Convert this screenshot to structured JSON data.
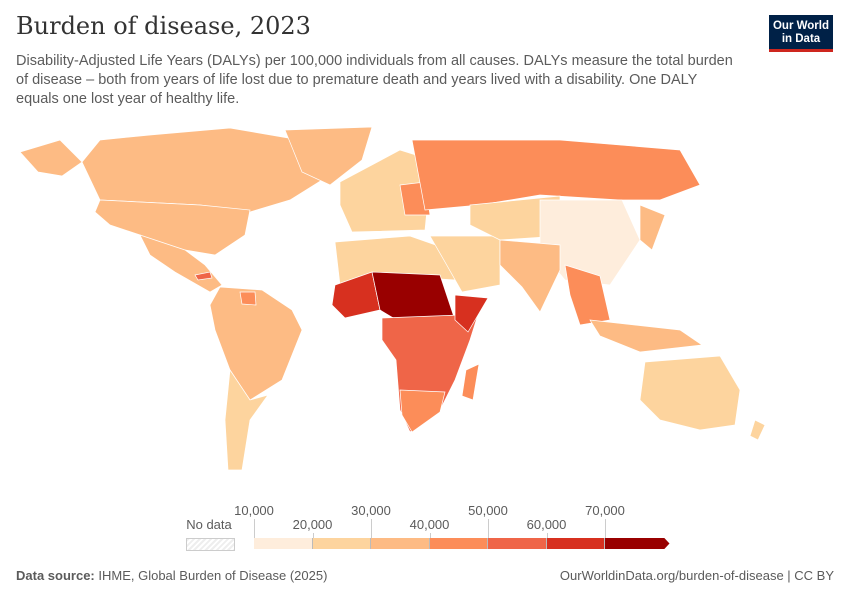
{
  "header": {
    "title": "Burden of disease, 2023",
    "subtitle": "Disability-Adjusted Life Years (DALYs) per 100,000 individuals from all causes. DALYs measure the total burden of disease – both from years of life lost due to premature death and years lived with a disability. One DALY equals one lost year of healthy life.",
    "logo_line1": "Our World",
    "logo_line2": "in Data"
  },
  "legend": {
    "no_data_label": "No data",
    "ticks": [
      "10,000",
      "20,000",
      "30,000",
      "40,000",
      "50,000",
      "60,000",
      "70,000"
    ],
    "colors": [
      "#feeddc",
      "#fdd49e",
      "#fdbb84",
      "#fc8d59",
      "#ef6548",
      "#d7301f",
      "#990000"
    ],
    "no_data_color": "#e8e8e8"
  },
  "footer": {
    "source_label": "Data source:",
    "source": "IHME, Global Burden of Disease (2025)",
    "url": "OurWorldinData.org/burden-of-disease | CC BY"
  }
}
